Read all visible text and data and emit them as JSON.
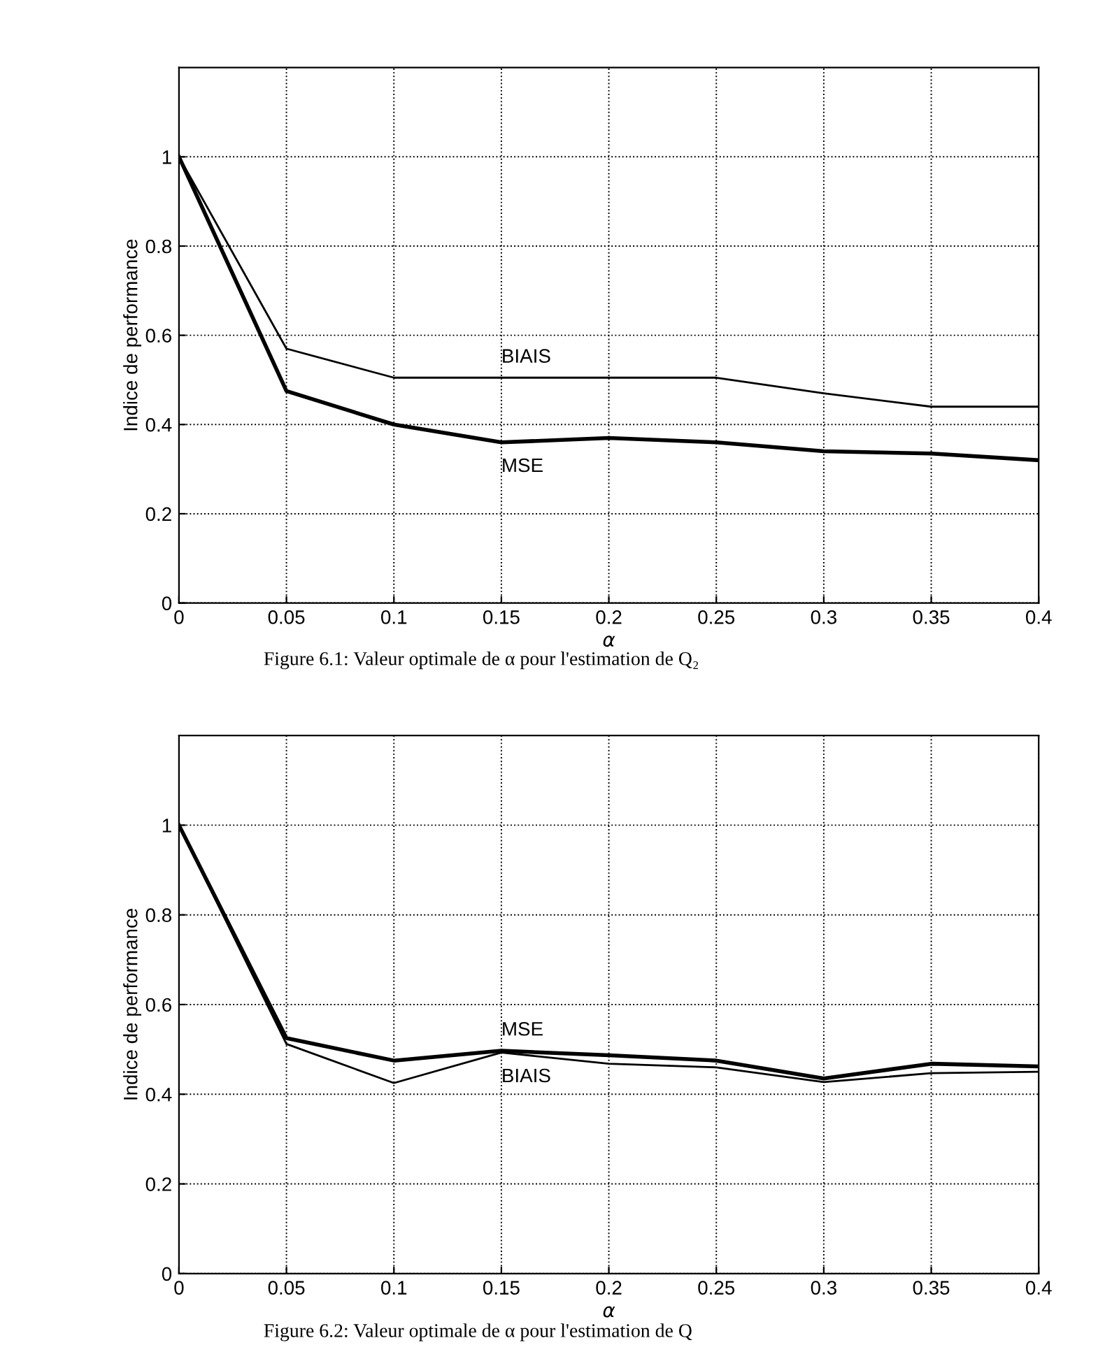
{
  "chart_data": [
    {
      "type": "line",
      "xlabel": "α",
      "ylabel": "Indice de performance",
      "x": [
        0,
        0.05,
        0.1,
        0.15,
        0.2,
        0.25,
        0.3,
        0.35,
        0.4
      ],
      "series": [
        {
          "name": "BIAIS",
          "color": "#000000",
          "values": [
            1,
            0.57,
            0.505,
            0.505,
            0.505,
            0.505,
            0.47,
            0.44,
            0.44
          ]
        },
        {
          "name": "MSE",
          "color": "#000000",
          "values": [
            1,
            0.475,
            0.4,
            0.36,
            0.37,
            0.36,
            0.34,
            0.335,
            0.32
          ]
        }
      ],
      "xlim": [
        0,
        0.4
      ],
      "xticks": [
        0,
        0.05,
        0.1,
        0.15,
        0.2,
        0.25,
        0.3,
        0.35,
        0.4
      ],
      "ylim": [
        0,
        1.2
      ],
      "yticks": [
        0,
        0.2,
        0.4,
        0.6,
        0.8,
        1
      ],
      "grid": true,
      "legend": false,
      "marker": "none",
      "line_style": "solid",
      "annotations": [
        "Figure 6.1: Valeur optimale de α pour l'estimation de Q₂"
      ]
    },
    {
      "type": "line",
      "xlabel": "α",
      "ylabel": "Indice de performance",
      "x": [
        0,
        0.05,
        0.1,
        0.15,
        0.2,
        0.25,
        0.3,
        0.35,
        0.4
      ],
      "series": [
        {
          "name": "MSE",
          "color": "#000000",
          "values": [
            1,
            0.525,
            0.475,
            0.497,
            0.487,
            0.475,
            0.435,
            0.468,
            0.462
          ]
        },
        {
          "name": "BIAIS",
          "color": "#000000",
          "values": [
            1,
            0.512,
            0.425,
            0.493,
            0.468,
            0.46,
            0.427,
            0.447,
            0.45
          ]
        }
      ],
      "xlim": [
        0,
        0.4
      ],
      "xticks": [
        0,
        0.05,
        0.1,
        0.15,
        0.2,
        0.25,
        0.3,
        0.35,
        0.4
      ],
      "ylim": [
        0,
        1.2
      ],
      "yticks": [
        0,
        0.2,
        0.4,
        0.6,
        0.8,
        1
      ],
      "grid": true,
      "legend": false,
      "marker": "none",
      "line_style": "solid",
      "annotations": [
        "Figure 6.2: Valeur optimale de α pour l'estimation de Q"
      ]
    }
  ]
}
